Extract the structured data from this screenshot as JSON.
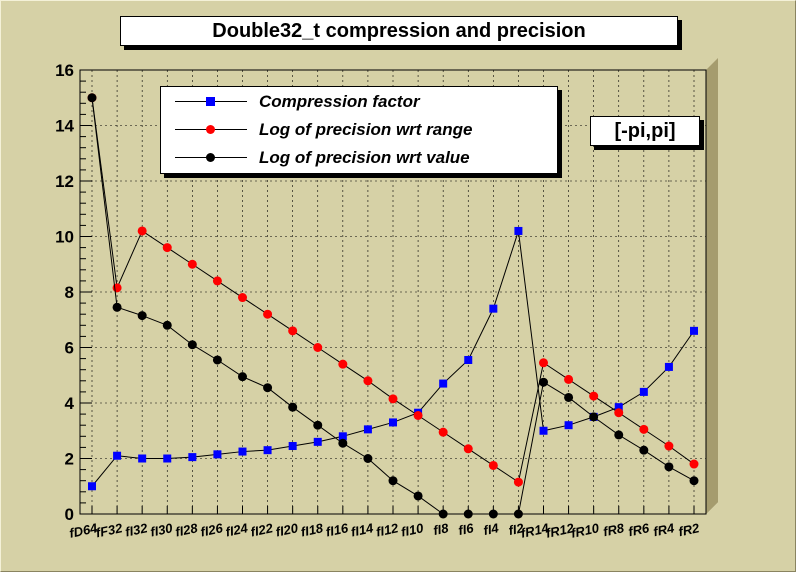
{
  "title": "Double32_t compression and precision",
  "annotation": "[-pi,pi]",
  "legend": [
    {
      "label": "Compression factor",
      "color": "#0000ff",
      "marker": "square"
    },
    {
      "label": "Log of precision wrt range",
      "color": "#ff0000",
      "marker": "circle"
    },
    {
      "label": "Log of precision wrt value",
      "color": "#000000",
      "marker": "circle"
    }
  ],
  "colors": {
    "background": "#d6d1a6",
    "plot_area": "#d6d1a6",
    "frame_dark": "#a59c6e",
    "compression": "#0000ff",
    "precision_range": "#ff0000",
    "precision_value": "#000000"
  },
  "chart_data": {
    "type": "line",
    "title": "Double32_t compression and precision",
    "ylim": [
      0,
      16
    ],
    "yticks": [
      0,
      2,
      4,
      6,
      8,
      10,
      12,
      14,
      16
    ],
    "grid": true,
    "legend_position": "top-center",
    "categories": [
      "fD64",
      "fF32",
      "fI32",
      "fI30",
      "fI28",
      "fI26",
      "fI24",
      "fI22",
      "fI20",
      "fI18",
      "fI16",
      "fI14",
      "fI12",
      "fI10",
      "fI8",
      "fI6",
      "fI4",
      "fI2",
      "fR14",
      "fR12",
      "fR10",
      "fR8",
      "fR6",
      "fR4",
      "fR2"
    ],
    "series": [
      {
        "name": "Compression factor",
        "color": "#0000ff",
        "marker": "square",
        "values": [
          1.0,
          2.1,
          2.0,
          2.0,
          2.05,
          2.15,
          2.25,
          2.3,
          2.45,
          2.6,
          2.8,
          3.05,
          3.3,
          3.65,
          4.7,
          5.55,
          7.4,
          10.2,
          3.0,
          3.2,
          3.5,
          3.85,
          4.4,
          5.3,
          6.6
        ]
      },
      {
        "name": "Log of precision wrt range",
        "color": "#ff0000",
        "marker": "circle",
        "values": [
          15.0,
          8.15,
          10.2,
          9.6,
          9.0,
          8.4,
          7.8,
          7.2,
          6.6,
          6.0,
          5.4,
          4.8,
          4.15,
          3.55,
          2.95,
          2.35,
          1.75,
          1.15,
          5.45,
          4.85,
          4.25,
          3.65,
          3.05,
          2.45,
          1.8
        ]
      },
      {
        "name": "Log of precision wrt value",
        "color": "#000000",
        "marker": "circle",
        "values": [
          15.0,
          7.45,
          7.15,
          6.8,
          6.1,
          5.55,
          4.95,
          4.55,
          3.85,
          3.2,
          2.55,
          2.0,
          1.2,
          0.65,
          0.0,
          0.0,
          0.0,
          0.0,
          4.75,
          4.2,
          3.5,
          2.85,
          2.3,
          1.7,
          1.2
        ]
      }
    ]
  }
}
